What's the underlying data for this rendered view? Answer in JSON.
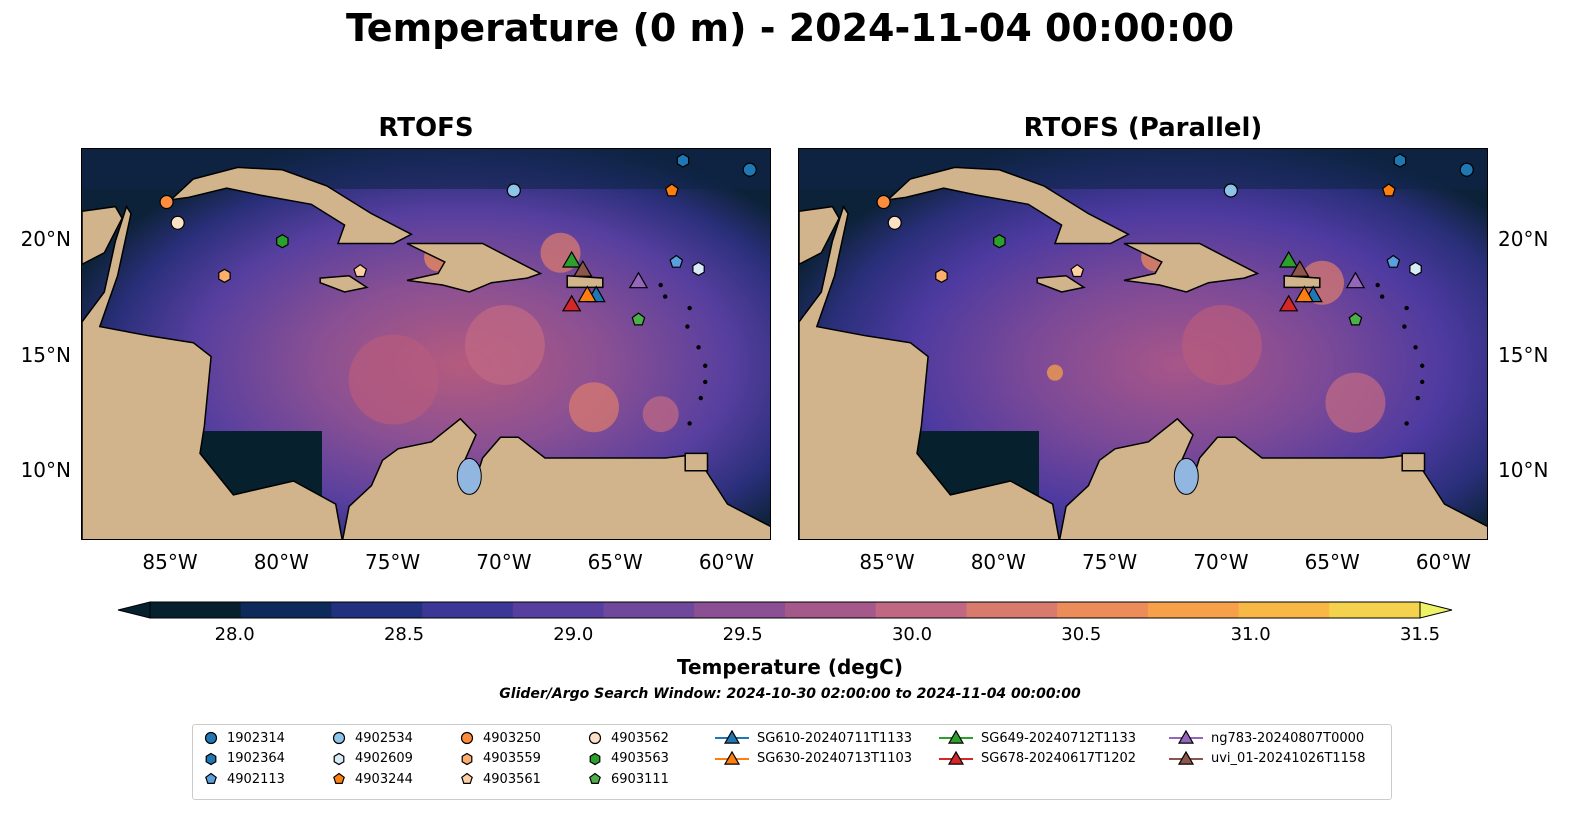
{
  "figure": {
    "title": "Temperature (0 m) - 2024-11-04 00:00:00",
    "panels": [
      {
        "title": "RTOFS"
      },
      {
        "title": "RTOFS (Parallel)"
      }
    ],
    "lon_ticks": [
      "85°W",
      "80°W",
      "75°W",
      "70°W",
      "65°W",
      "60°W"
    ],
    "lat_ticks": [
      "20°N",
      "15°N",
      "10°N"
    ],
    "extent": {
      "lon": [
        -89,
        -58
      ],
      "lat": [
        7,
        24
      ]
    },
    "colorbar": {
      "label": "Temperature (degC)",
      "ticks": [
        "28.0",
        "28.5",
        "29.0",
        "29.5",
        "30.0",
        "30.5",
        "31.0",
        "31.5"
      ],
      "range": [
        28.0,
        31.5
      ],
      "extend": "both",
      "colors": [
        "#06202e",
        "#0e2a5a",
        "#22317e",
        "#3b3797",
        "#573f9f",
        "#6f489c",
        "#8a5093",
        "#a5598b",
        "#c06883",
        "#d97a6f",
        "#ec8c5a",
        "#f7a04a",
        "#f8b845",
        "#f5d24d",
        "#eef266"
      ]
    },
    "search_window": "Glider/Argo Search Window: 2024-10-30 02:00:00 to 2024-11-04 00:00:00",
    "colors": {
      "land": "#d2b48c",
      "lake": "#91b6e0",
      "ocean_deep": "#06202e"
    }
  },
  "legend": [
    {
      "label": "1902314",
      "shape": "circle",
      "color": "#1f77b4"
    },
    {
      "label": "1902364",
      "shape": "hexagon",
      "color": "#1f77b4"
    },
    {
      "label": "4902113",
      "shape": "pentagon",
      "color": "#5aa0dc"
    },
    {
      "label": "4902534",
      "shape": "circle",
      "color": "#8ec4ea"
    },
    {
      "label": "4902609",
      "shape": "hexagon",
      "color": "#d8ecf8"
    },
    {
      "label": "4903244",
      "shape": "pentagon",
      "color": "#ff7f0e"
    },
    {
      "label": "4903250",
      "shape": "circle",
      "color": "#fd8d3c"
    },
    {
      "label": "4903559",
      "shape": "hexagon",
      "color": "#fdae6b"
    },
    {
      "label": "4903561",
      "shape": "pentagon",
      "color": "#fdd0a2"
    },
    {
      "label": "4903562",
      "shape": "circle",
      "color": "#fde0c5"
    },
    {
      "label": "4903563",
      "shape": "hexagon",
      "color": "#2ca02c"
    },
    {
      "label": "6903111",
      "shape": "pentagon",
      "color": "#4daf4a"
    },
    {
      "label": "SG610-20240711T1133",
      "shape": "triangle",
      "color": "#1f77b4"
    },
    {
      "label": "SG630-20240713T1103",
      "shape": "triangle",
      "color": "#ff7f0e"
    },
    {
      "label": "SG649-20240712T1133",
      "shape": "triangle",
      "color": "#2ca02c"
    },
    {
      "label": "SG678-20240617T1202",
      "shape": "triangle",
      "color": "#d62728"
    },
    {
      "label": "ng783-20240807T0000",
      "shape": "triangle",
      "color": "#9467bd"
    },
    {
      "label": "uvi_01-20241026T1158",
      "shape": "triangle",
      "color": "#8c564b"
    }
  ],
  "markers": [
    {
      "id": "1902314",
      "lon": -59.0,
      "lat": 23.1
    },
    {
      "id": "1902364",
      "lon": -62.0,
      "lat": 23.5
    },
    {
      "id": "4902113",
      "lon": -62.3,
      "lat": 19.1
    },
    {
      "id": "4902534",
      "lon": -69.6,
      "lat": 22.2
    },
    {
      "id": "4902609",
      "lon": -61.3,
      "lat": 18.8
    },
    {
      "id": "4903244",
      "lon": -62.5,
      "lat": 22.2
    },
    {
      "id": "4903250",
      "lon": -85.2,
      "lat": 21.7
    },
    {
      "id": "4903559",
      "lon": -82.6,
      "lat": 18.5
    },
    {
      "id": "4903561",
      "lon": -76.5,
      "lat": 18.7
    },
    {
      "id": "4903562",
      "lon": -84.7,
      "lat": 20.8
    },
    {
      "id": "4903563",
      "lon": -80.0,
      "lat": 20.0
    },
    {
      "id": "6903111",
      "lon": -64.0,
      "lat": 16.6
    },
    {
      "id": "SG610-20240711T1133",
      "lon": -65.9,
      "lat": 17.6
    },
    {
      "id": "SG630-20240713T1103",
      "lon": -66.3,
      "lat": 17.6
    },
    {
      "id": "SG649-20240712T1133",
      "lon": -67.0,
      "lat": 19.1
    },
    {
      "id": "SG678-20240617T1202",
      "lon": -67.0,
      "lat": 17.2
    },
    {
      "id": "ng783-20240807T0000",
      "lon": -64.0,
      "lat": 18.2
    },
    {
      "id": "uvi_01-20241026T1158",
      "lon": -66.5,
      "lat": 18.7
    }
  ]
}
